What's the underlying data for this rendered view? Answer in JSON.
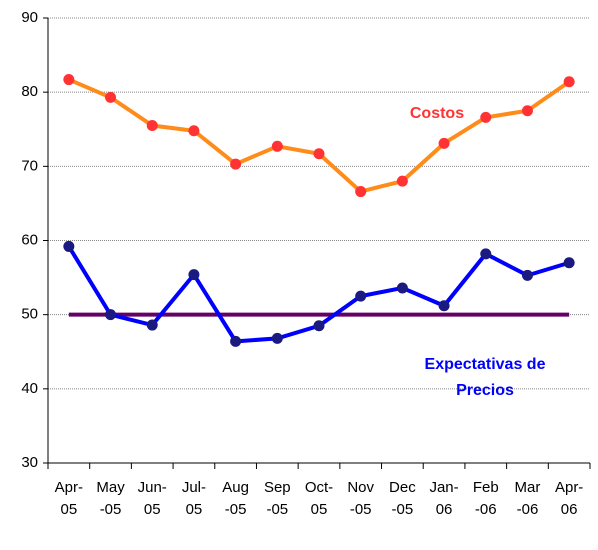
{
  "chart_data": {
    "type": "line",
    "categories": [
      "Apr-05",
      "May-05",
      "Jun-05",
      "Jul-05",
      "Aug-05",
      "Sep-05",
      "Oct-05",
      "Nov-05",
      "Dec-05",
      "Jan-06",
      "Feb-06",
      "Mar-06",
      "Apr-06"
    ],
    "series": [
      {
        "name": "Costos",
        "color": "#ff8c1a",
        "marker_color": "#ff3333",
        "values": [
          81.7,
          79.3,
          75.5,
          74.8,
          70.3,
          72.7,
          71.7,
          66.6,
          68,
          73.1,
          76.6,
          77.5,
          81.4
        ]
      },
      {
        "name": "Expectativas de Precios",
        "color": "#0000ff",
        "marker_color": "#1a1a80",
        "values": [
          59.2,
          50,
          48.6,
          55.4,
          46.4,
          46.8,
          48.5,
          52.5,
          53.6,
          51.2,
          58.2,
          55.3,
          57
        ]
      }
    ],
    "reference_line": {
      "value": 50,
      "color": "#660066"
    },
    "ylim": [
      30,
      90
    ],
    "yticks": [
      30,
      40,
      50,
      60,
      70,
      80,
      90
    ],
    "grid": true
  }
}
